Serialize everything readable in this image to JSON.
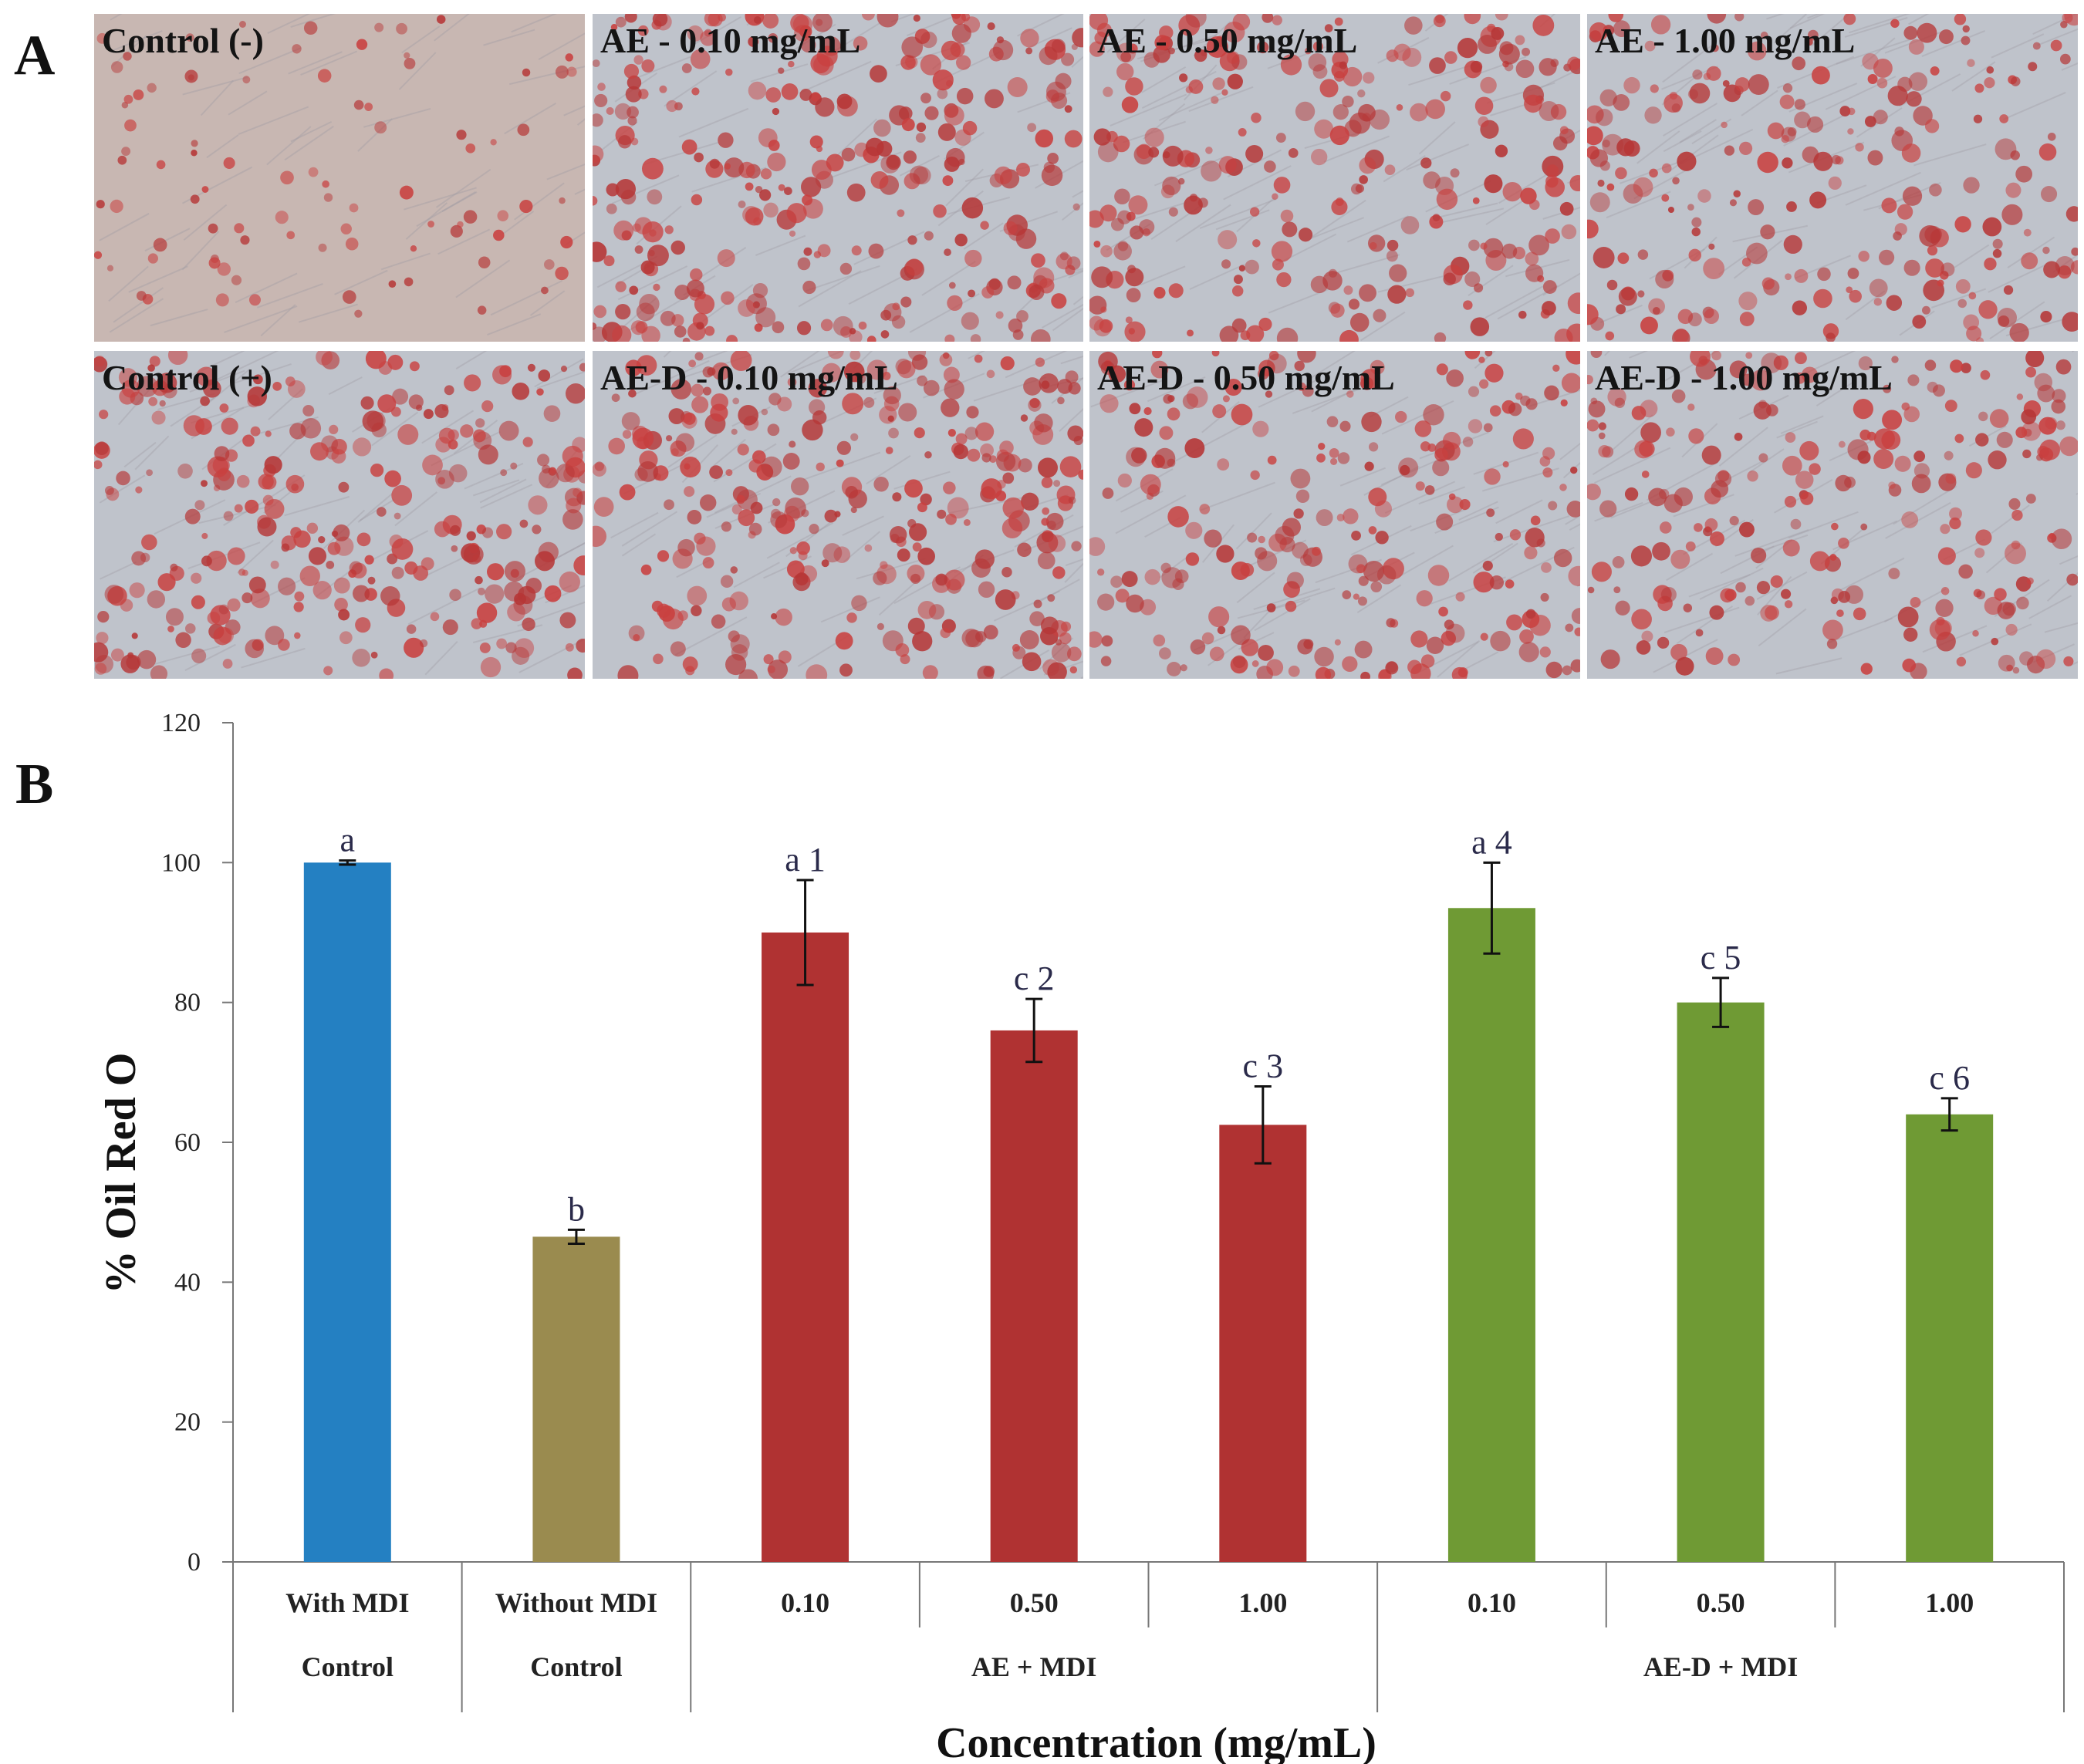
{
  "panel_labels": {
    "a": "A",
    "b": "B"
  },
  "panel_a": {
    "images": [
      {
        "label": "Control (-)",
        "stain_level": 0.15
      },
      {
        "label": "AE - 0.10 mg/mL",
        "stain_level": 0.85
      },
      {
        "label": "AE - 0.50 mg/mL",
        "stain_level": 0.7
      },
      {
        "label": "AE - 1.00 mg/mL",
        "stain_level": 0.6
      },
      {
        "label": "Control (+)",
        "stain_level": 0.8
      },
      {
        "label": "AE-D - 0.10 mg/mL",
        "stain_level": 0.85
      },
      {
        "label": "AE-D - 0.50 mg/mL",
        "stain_level": 0.65
      },
      {
        "label": "AE-D - 1.00 mg/mL",
        "stain_level": 0.6
      }
    ]
  },
  "chart_data": {
    "type": "bar",
    "title": "",
    "ylabel": "% Oil Red O",
    "xlabel": "Concentration (mg/mL)",
    "ylim": [
      0,
      120
    ],
    "yticks": [
      0,
      20,
      40,
      60,
      80,
      100,
      120
    ],
    "grid": false,
    "legend": "none",
    "categories": [
      "With MDI",
      "Without MDI",
      "0.10",
      "0.50",
      "1.00",
      "0.10",
      "0.50",
      "1.00"
    ],
    "groups": [
      {
        "label": "Control",
        "span": [
          0,
          0
        ]
      },
      {
        "label": "Control",
        "span": [
          1,
          1
        ]
      },
      {
        "label": "AE + MDI",
        "span": [
          2,
          4
        ]
      },
      {
        "label": "AE-D + MDI",
        "span": [
          5,
          7
        ]
      }
    ],
    "values": [
      100,
      46.5,
      90,
      76,
      62.5,
      93.5,
      80,
      64
    ],
    "errors": [
      0.3,
      1.0,
      7.5,
      4.5,
      5.5,
      6.5,
      3.5,
      2.3
    ],
    "annotations": [
      "a",
      "b",
      "a 1",
      "c 2",
      "c 3",
      "a 4",
      "c 5",
      "c 6"
    ],
    "colors": [
      "#2480c2",
      "#9a8b4f",
      "#b03232",
      "#b03232",
      "#b03232",
      "#6f9a34",
      "#6f9a34",
      "#6f9a34"
    ]
  }
}
